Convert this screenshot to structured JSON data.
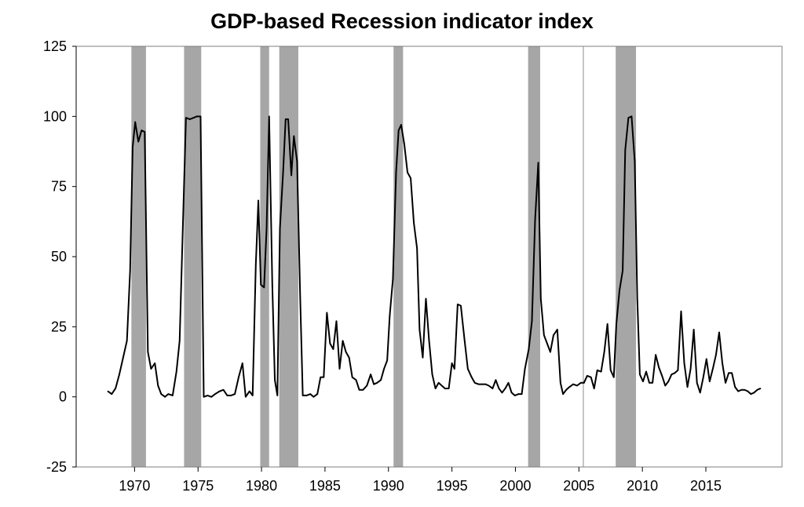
{
  "chart_data": {
    "type": "line",
    "title": "GDP-based Recession indicator index",
    "xlabel": "",
    "ylabel": "",
    "xlim": [
      1965.4,
      2021.0
    ],
    "ylim": [
      -25,
      125
    ],
    "y_ticks": [
      125,
      100,
      75,
      50,
      25,
      0,
      -25
    ],
    "x_ticks": [
      1970,
      1975,
      1980,
      1985,
      1990,
      1995,
      2000,
      2005,
      2010,
      2015
    ],
    "grid": false,
    "legend": "none",
    "colors": {
      "line": "#000000",
      "recession": "#a6a6a6",
      "axis": "#000000"
    },
    "recession_bands": [
      [
        1969.75,
        1970.9
      ],
      [
        1973.9,
        1975.25
      ],
      [
        1979.9,
        1980.6
      ],
      [
        1981.4,
        1982.9
      ],
      [
        1990.4,
        1991.15
      ],
      [
        2001.0,
        2001.95
      ],
      [
        2007.9,
        2009.5
      ]
    ],
    "series": [
      {
        "points": [
          [
            1967.9,
            2
          ],
          [
            1968.2,
            1
          ],
          [
            1968.5,
            3
          ],
          [
            1968.8,
            8
          ],
          [
            1969.1,
            14
          ],
          [
            1969.4,
            20
          ],
          [
            1969.65,
            45
          ],
          [
            1969.85,
            89
          ],
          [
            1970.05,
            98
          ],
          [
            1970.3,
            91
          ],
          [
            1970.55,
            95
          ],
          [
            1970.8,
            94.5
          ],
          [
            1971.05,
            16
          ],
          [
            1971.3,
            10
          ],
          [
            1971.6,
            12
          ],
          [
            1971.85,
            4
          ],
          [
            1972.1,
            1
          ],
          [
            1972.4,
            0
          ],
          [
            1972.65,
            1
          ],
          [
            1973.0,
            0.5
          ],
          [
            1973.3,
            9
          ],
          [
            1973.55,
            20
          ],
          [
            1973.8,
            60
          ],
          [
            1974.05,
            99.5
          ],
          [
            1974.35,
            99
          ],
          [
            1974.65,
            99.5
          ],
          [
            1974.9,
            100
          ],
          [
            1975.2,
            100
          ],
          [
            1975.45,
            0
          ],
          [
            1975.75,
            0.5
          ],
          [
            1976.05,
            0
          ],
          [
            1976.35,
            1
          ],
          [
            1976.7,
            2
          ],
          [
            1977.0,
            2.5
          ],
          [
            1977.3,
            0.5
          ],
          [
            1977.6,
            0.5
          ],
          [
            1977.9,
            1
          ],
          [
            1978.2,
            7
          ],
          [
            1978.5,
            12
          ],
          [
            1978.75,
            0
          ],
          [
            1979.05,
            2
          ],
          [
            1979.3,
            0.5
          ],
          [
            1979.55,
            47
          ],
          [
            1979.75,
            70
          ],
          [
            1979.95,
            40
          ],
          [
            1980.2,
            39
          ],
          [
            1980.4,
            60
          ],
          [
            1980.6,
            100
          ],
          [
            1980.85,
            40
          ],
          [
            1981.05,
            6
          ],
          [
            1981.25,
            0.5
          ],
          [
            1981.45,
            60
          ],
          [
            1981.7,
            80
          ],
          [
            1981.9,
            99
          ],
          [
            1982.1,
            99
          ],
          [
            1982.35,
            79
          ],
          [
            1982.55,
            93
          ],
          [
            1982.8,
            84
          ],
          [
            1983.05,
            35
          ],
          [
            1983.25,
            0.5
          ],
          [
            1983.55,
            0.5
          ],
          [
            1983.85,
            1
          ],
          [
            1984.1,
            0
          ],
          [
            1984.4,
            1
          ],
          [
            1984.65,
            7
          ],
          [
            1984.9,
            7
          ],
          [
            1985.15,
            30
          ],
          [
            1985.4,
            19
          ],
          [
            1985.65,
            17
          ],
          [
            1985.9,
            27
          ],
          [
            1986.15,
            10
          ],
          [
            1986.4,
            20
          ],
          [
            1986.65,
            16
          ],
          [
            1986.9,
            14
          ],
          [
            1987.15,
            7
          ],
          [
            1987.45,
            6
          ],
          [
            1987.7,
            2.5
          ],
          [
            1988.0,
            2.5
          ],
          [
            1988.3,
            4
          ],
          [
            1988.6,
            8
          ],
          [
            1988.85,
            4.5
          ],
          [
            1989.1,
            5
          ],
          [
            1989.4,
            6
          ],
          [
            1989.65,
            10
          ],
          [
            1989.9,
            13
          ],
          [
            1990.1,
            29
          ],
          [
            1990.35,
            42
          ],
          [
            1990.6,
            80
          ],
          [
            1990.8,
            95
          ],
          [
            1991.0,
            97
          ],
          [
            1991.25,
            90
          ],
          [
            1991.5,
            80
          ],
          [
            1991.75,
            78
          ],
          [
            1992.0,
            62
          ],
          [
            1992.25,
            53
          ],
          [
            1992.45,
            24
          ],
          [
            1992.7,
            14
          ],
          [
            1992.95,
            35
          ],
          [
            1993.2,
            20
          ],
          [
            1993.45,
            8
          ],
          [
            1993.7,
            3
          ],
          [
            1993.95,
            5
          ],
          [
            1994.2,
            4
          ],
          [
            1994.45,
            3
          ],
          [
            1994.75,
            3
          ],
          [
            1995.0,
            12
          ],
          [
            1995.2,
            10
          ],
          [
            1995.45,
            33
          ],
          [
            1995.7,
            32.5
          ],
          [
            1996.0,
            20
          ],
          [
            1996.25,
            10
          ],
          [
            1996.55,
            7
          ],
          [
            1996.8,
            5
          ],
          [
            1997.1,
            4.5
          ],
          [
            1997.4,
            4.5
          ],
          [
            1997.65,
            4.5
          ],
          [
            1997.9,
            4
          ],
          [
            1998.2,
            3
          ],
          [
            1998.45,
            6
          ],
          [
            1998.7,
            3
          ],
          [
            1998.95,
            1.5
          ],
          [
            1999.2,
            3
          ],
          [
            1999.45,
            5
          ],
          [
            1999.7,
            1.5
          ],
          [
            1999.95,
            0.5
          ],
          [
            2000.25,
            1
          ],
          [
            2000.5,
            1
          ],
          [
            2000.75,
            10
          ],
          [
            2001.05,
            17
          ],
          [
            2001.3,
            27
          ],
          [
            2001.55,
            63
          ],
          [
            2001.8,
            83.5
          ],
          [
            2002.0,
            35
          ],
          [
            2002.25,
            22
          ],
          [
            2002.5,
            19
          ],
          [
            2002.75,
            16
          ],
          [
            2003.0,
            22
          ],
          [
            2003.3,
            24
          ],
          [
            2003.55,
            5
          ],
          [
            2003.75,
            1
          ],
          [
            2004.0,
            2.5
          ],
          [
            2004.25,
            3.5
          ],
          [
            2004.55,
            4.5
          ],
          [
            2004.85,
            4
          ],
          [
            2005.15,
            5
          ],
          [
            2005.4,
            5
          ],
          [
            2005.65,
            7.5
          ],
          [
            2005.95,
            7
          ],
          [
            2006.2,
            3
          ],
          [
            2006.45,
            9.5
          ],
          [
            2006.75,
            9
          ],
          [
            2007.0,
            16
          ],
          [
            2007.25,
            26
          ],
          [
            2007.5,
            9.5
          ],
          [
            2007.75,
            7
          ],
          [
            2007.95,
            26
          ],
          [
            2008.2,
            38
          ],
          [
            2008.45,
            45
          ],
          [
            2008.65,
            88
          ],
          [
            2008.9,
            99.5
          ],
          [
            2009.15,
            100
          ],
          [
            2009.4,
            84
          ],
          [
            2009.6,
            35
          ],
          [
            2009.8,
            8
          ],
          [
            2010.05,
            5.5
          ],
          [
            2010.3,
            9
          ],
          [
            2010.55,
            5
          ],
          [
            2010.8,
            5
          ],
          [
            2011.05,
            15
          ],
          [
            2011.3,
            10.5
          ],
          [
            2011.55,
            7.5
          ],
          [
            2011.8,
            4
          ],
          [
            2012.05,
            5.5
          ],
          [
            2012.3,
            8
          ],
          [
            2012.55,
            8.5
          ],
          [
            2012.8,
            9.5
          ],
          [
            2013.05,
            30.5
          ],
          [
            2013.3,
            12
          ],
          [
            2013.55,
            3.5
          ],
          [
            2013.8,
            10
          ],
          [
            2014.05,
            24
          ],
          [
            2014.3,
            5
          ],
          [
            2014.55,
            1.5
          ],
          [
            2014.8,
            7
          ],
          [
            2015.05,
            13.5
          ],
          [
            2015.3,
            5.5
          ],
          [
            2015.55,
            10
          ],
          [
            2015.8,
            15
          ],
          [
            2016.05,
            23
          ],
          [
            2016.3,
            12
          ],
          [
            2016.55,
            5
          ],
          [
            2016.8,
            8.5
          ],
          [
            2017.05,
            8.5
          ],
          [
            2017.3,
            3.5
          ],
          [
            2017.55,
            2
          ],
          [
            2017.8,
            2.5
          ],
          [
            2018.05,
            2.5
          ],
          [
            2018.3,
            2
          ],
          [
            2018.55,
            1
          ],
          [
            2018.8,
            1.5
          ],
          [
            2019.05,
            2.5
          ],
          [
            2019.3,
            3
          ]
        ]
      }
    ]
  }
}
